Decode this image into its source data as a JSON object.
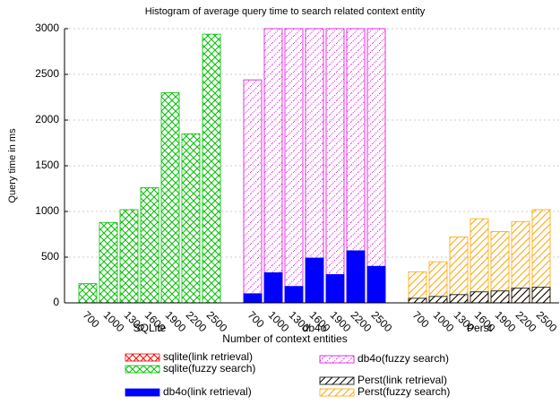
{
  "chart_data": {
    "type": "bar",
    "title": "Histogram of average query time to search related context entity",
    "x_label": "Number of context entities",
    "y_label": "Query time in ms",
    "categories": [
      "700",
      "1000",
      "1300",
      "1600",
      "1900",
      "2200",
      "2500"
    ],
    "ylim": [
      0,
      3000
    ],
    "yticks": [
      0,
      500,
      1000,
      1500,
      2000,
      2500,
      3000
    ],
    "grid": true,
    "groups": [
      {
        "name": "SQLite",
        "series": [
          {
            "name": "sqlite(link retrieval)",
            "color": "#ff0000",
            "fill": "cross",
            "values": [
              0,
              0,
              0,
              0,
              0,
              0,
              0
            ]
          },
          {
            "name": "sqlite(fuzzy search)",
            "color": "#00c000",
            "fill": "cross",
            "values": [
              210,
              880,
              1020,
              1260,
              2300,
              1850,
              2940
            ]
          }
        ]
      },
      {
        "name": "db4o",
        "series": [
          {
            "name": "db4o(link retrieval)",
            "color": "#0000ff",
            "fill": "solid",
            "values": [
              100,
              330,
              180,
              490,
              310,
              570,
              400
            ]
          },
          {
            "name": "db4o(fuzzy search)",
            "color": "#e000e0",
            "fill": "dots",
            "values": [
              2440,
              3000,
              3000,
              3000,
              3000,
              3000,
              3000
            ]
          }
        ]
      },
      {
        "name": "Perst",
        "series": [
          {
            "name": "Perst(link retrieval)",
            "color": "#000000",
            "fill": "diag",
            "values": [
              50,
              70,
              90,
              120,
              130,
              160,
              170
            ]
          },
          {
            "name": "Perst(fuzzy search)",
            "color": "#ffa500",
            "fill": "diag",
            "values": [
              340,
              450,
              720,
              920,
              780,
              890,
              1020
            ]
          }
        ]
      }
    ]
  }
}
